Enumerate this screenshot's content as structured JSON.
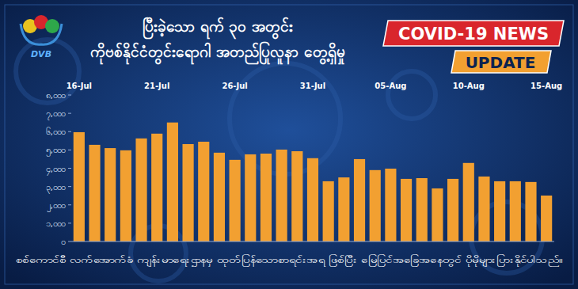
{
  "chart_data": {
    "type": "bar",
    "title": "ပြီးခဲ့သော ရက် ၃၀ အတွင်း",
    "subtitle": "ကိုဗစ်နိုင်ငံတွင်းရောဂါ အတည်ပြုလူနာ တွေ့ရှိမှု",
    "annotations": [
      "DVB",
      "COVID-19 NEWS",
      "UPDATE",
      "စစ်ကောင်စီ လက်အောက်ခံ ကျန်းမာရေးဌာနမှ ထုတ်ပြန်သောစာရင်းအရ ဖြစ်ပြီး မြေပြင်အခြေအနေတွင် ပိုမိုများပြားနိုင်ပါသည်။"
    ],
    "categories": [
      "16-Jul",
      null,
      null,
      null,
      null,
      "21-Jul",
      null,
      null,
      null,
      null,
      "26-Jul",
      null,
      null,
      null,
      null,
      "31-Jul",
      null,
      null,
      null,
      null,
      "05-Aug",
      null,
      null,
      null,
      null,
      "10-Aug",
      null,
      null,
      null,
      null,
      "15-Aug"
    ],
    "values": [
      5970,
      5280,
      5100,
      4980,
      5630,
      5890,
      6500,
      5320,
      5450,
      4850,
      4460,
      4760,
      4800,
      5020,
      4930,
      4550,
      3290,
      3500,
      4500,
      3900,
      3980,
      3420,
      3460,
      2900,
      3420,
      4290,
      3550,
      3290,
      3290,
      3250,
      2510
    ],
    "color": "#f2a031",
    "ylim": [
      0,
      8000
    ],
    "yticks": [
      {
        "value": 0,
        "label": "၀"
      },
      {
        "value": 1000,
        "label": "၁,၀၀၀"
      },
      {
        "value": 2000,
        "label": "၂,၀၀၀"
      },
      {
        "value": 3000,
        "label": "၃,၀၀၀"
      },
      {
        "value": 4000,
        "label": "၄,၀၀၀"
      },
      {
        "value": 5000,
        "label": "၅,၀၀၀"
      },
      {
        "value": 6000,
        "label": "၆,၀၀၀"
      },
      {
        "value": 7000,
        "label": "၇,၀၀၀"
      },
      {
        "value": 8000,
        "label": "၈,၀၀၀"
      }
    ],
    "grid": false
  }
}
